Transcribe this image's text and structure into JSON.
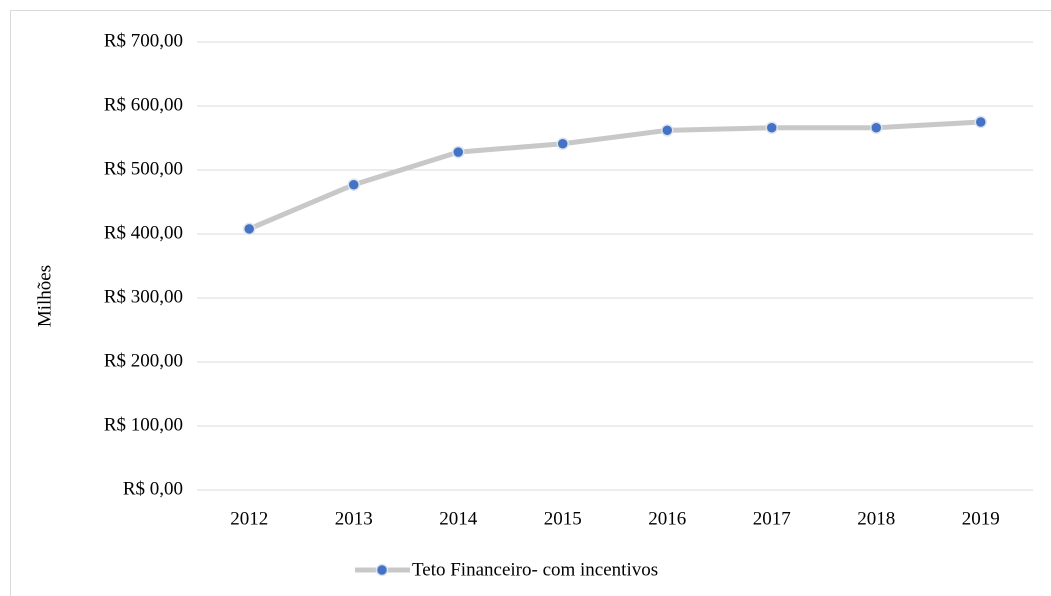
{
  "chart_data": {
    "type": "line",
    "y_label": "Milhões",
    "categories": [
      "2012",
      "2013",
      "2014",
      "2015",
      "2016",
      "2017",
      "2018",
      "2019"
    ],
    "series": [
      {
        "name": "Teto Financeiro- com incentivos",
        "color": "#4472c4",
        "line_color": "#c8c8c8",
        "values": [
          408,
          477,
          528,
          541,
          562,
          566,
          566,
          575
        ]
      }
    ],
    "ylim": [
      0,
      700
    ],
    "yticks": [
      {
        "value": 0,
        "label": "R$ 0,00"
      },
      {
        "value": 100,
        "label": "R$ 100,00"
      },
      {
        "value": 200,
        "label": "R$ 200,00"
      },
      {
        "value": 300,
        "label": "R$ 300,00"
      },
      {
        "value": 400,
        "label": "R$ 400,00"
      },
      {
        "value": 500,
        "label": "R$ 500,00"
      },
      {
        "value": 600,
        "label": "R$ 600,00"
      },
      {
        "value": 700,
        "label": "R$ 700,00"
      }
    ],
    "grid": true,
    "legend": "bottom"
  }
}
